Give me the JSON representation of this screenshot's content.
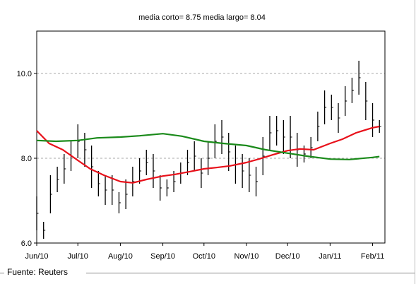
{
  "chart_data": {
    "type": "line",
    "title": "media corto= 8.75 media largo= 8.04",
    "xlabel": "",
    "ylabel": "",
    "ylim": [
      6.0,
      11.0
    ],
    "yticks": [
      "6.0",
      "8.0",
      "10.0"
    ],
    "xlim": [
      "2010-06-01",
      "2011-02-10"
    ],
    "x_tick_labels": [
      "Jun/10",
      "Jul/10",
      "Aug/10",
      "Sep/10",
      "Oct/10",
      "Nov/10",
      "Dec/10",
      "Jan/11",
      "Feb/11"
    ],
    "grid": "horizontal dashed",
    "price_bars": {
      "color": "#000000",
      "x": [
        "2010-06-01",
        "2010-06-06",
        "2010-06-11",
        "2010-06-16",
        "2010-06-21",
        "2010-06-26",
        "2010-07-01",
        "2010-07-06",
        "2010-07-11",
        "2010-07-16",
        "2010-07-21",
        "2010-07-26",
        "2010-07-31",
        "2010-08-05",
        "2010-08-10",
        "2010-08-15",
        "2010-08-20",
        "2010-08-25",
        "2010-08-30",
        "2010-09-04",
        "2010-09-09",
        "2010-09-14",
        "2010-09-19",
        "2010-09-24",
        "2010-09-29",
        "2010-10-04",
        "2010-10-09",
        "2010-10-14",
        "2010-10-19",
        "2010-10-24",
        "2010-10-29",
        "2010-11-03",
        "2010-11-08",
        "2010-11-13",
        "2010-11-18",
        "2010-11-23",
        "2010-11-28",
        "2010-12-03",
        "2010-12-08",
        "2010-12-13",
        "2010-12-18",
        "2010-12-23",
        "2010-12-28",
        "2011-01-02",
        "2011-01-07",
        "2011-01-12",
        "2011-01-17",
        "2011-01-22",
        "2011-01-27",
        "2011-02-01",
        "2011-02-06"
      ],
      "high": [
        7.1,
        6.5,
        7.6,
        7.8,
        8.1,
        8.4,
        8.8,
        8.6,
        8.3,
        7.7,
        7.6,
        7.6,
        7.2,
        7.5,
        7.8,
        8.0,
        8.2,
        8.1,
        7.6,
        7.5,
        7.7,
        7.9,
        8.2,
        8.4,
        8.0,
        8.4,
        8.8,
        8.9,
        8.6,
        8.3,
        8.1,
        8.0,
        7.8,
        8.5,
        9.0,
        9.0,
        8.9,
        9.0,
        8.6,
        8.3,
        8.5,
        9.1,
        9.6,
        9.5,
        9.3,
        9.7,
        9.9,
        10.3,
        9.8,
        9.3,
        8.9
      ],
      "low": [
        6.3,
        6.1,
        6.7,
        7.2,
        7.4,
        7.7,
        8.0,
        7.8,
        7.3,
        7.1,
        6.9,
        6.9,
        6.7,
        6.8,
        7.1,
        7.4,
        7.6,
        7.3,
        7.0,
        7.1,
        7.2,
        7.4,
        7.6,
        7.7,
        7.3,
        7.6,
        8.0,
        8.1,
        7.7,
        7.4,
        7.3,
        7.2,
        7.1,
        7.6,
        8.2,
        8.3,
        8.1,
        8.0,
        7.8,
        7.9,
        8.0,
        8.4,
        8.8,
        8.9,
        8.6,
        9.0,
        9.3,
        9.5,
        8.9,
        8.5,
        8.6
      ]
    },
    "series": [
      {
        "color": "#e8101a",
        "x": [
          "2010-06-01",
          "2010-06-10",
          "2010-06-20",
          "2010-07-01",
          "2010-07-10",
          "2010-07-20",
          "2010-08-01",
          "2010-08-10",
          "2010-08-20",
          "2010-09-01",
          "2010-09-10",
          "2010-09-20",
          "2010-10-01",
          "2010-10-10",
          "2010-10-20",
          "2010-11-01",
          "2010-11-10",
          "2010-11-20",
          "2010-12-01",
          "2010-12-10",
          "2010-12-20",
          "2011-01-01",
          "2011-01-10",
          "2011-01-20",
          "2011-02-01",
          "2011-02-06"
        ],
        "values": [
          8.65,
          8.35,
          8.2,
          7.95,
          7.75,
          7.6,
          7.45,
          7.42,
          7.5,
          7.58,
          7.62,
          7.68,
          7.75,
          7.78,
          7.82,
          7.9,
          7.98,
          8.08,
          8.18,
          8.22,
          8.2,
          8.35,
          8.45,
          8.6,
          8.72,
          8.75
        ]
      },
      {
        "color": "#1a8a1a",
        "x": [
          "2010-06-01",
          "2010-06-15",
          "2010-07-01",
          "2010-07-15",
          "2010-08-01",
          "2010-08-15",
          "2010-09-01",
          "2010-09-15",
          "2010-10-01",
          "2010-10-15",
          "2010-11-01",
          "2010-11-15",
          "2010-12-01",
          "2010-12-15",
          "2011-01-01",
          "2011-01-15",
          "2011-02-01",
          "2011-02-06"
        ],
        "values": [
          8.42,
          8.4,
          8.42,
          8.48,
          8.5,
          8.53,
          8.58,
          8.52,
          8.4,
          8.35,
          8.3,
          8.2,
          8.12,
          8.05,
          7.98,
          7.97,
          8.02,
          8.04
        ]
      }
    ]
  },
  "footer": {
    "source_label": "Fuente: Reuters"
  }
}
